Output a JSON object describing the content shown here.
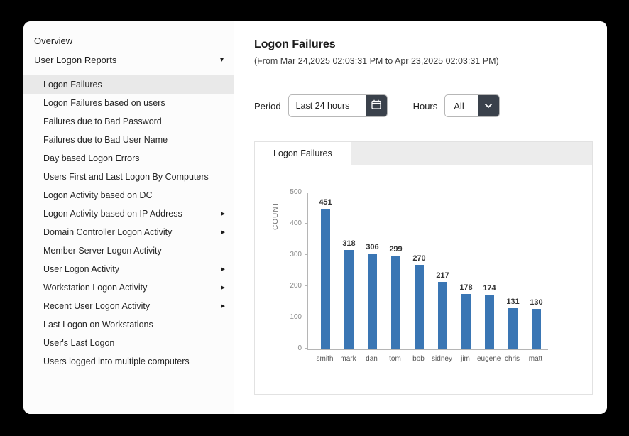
{
  "sidebar": {
    "overview_label": "Overview",
    "group_label": "User Logon Reports",
    "items": [
      {
        "label": "Logon Failures",
        "selected": true,
        "arrow": false
      },
      {
        "label": "Logon Failures based on users",
        "selected": false,
        "arrow": false
      },
      {
        "label": "Failures due to Bad Password",
        "selected": false,
        "arrow": false
      },
      {
        "label": "Failures due to Bad User Name",
        "selected": false,
        "arrow": false
      },
      {
        "label": "Day based Logon Errors",
        "selected": false,
        "arrow": false
      },
      {
        "label": "Users First and Last Logon By Computers",
        "selected": false,
        "arrow": false
      },
      {
        "label": "Logon Activity based on DC",
        "selected": false,
        "arrow": false
      },
      {
        "label": "Logon Activity based on IP Address",
        "selected": false,
        "arrow": true
      },
      {
        "label": "Domain Controller Logon Activity",
        "selected": false,
        "arrow": true
      },
      {
        "label": "Member Server Logon Activity",
        "selected": false,
        "arrow": false
      },
      {
        "label": "User Logon Activity",
        "selected": false,
        "arrow": true
      },
      {
        "label": "Workstation Logon Activity",
        "selected": false,
        "arrow": true
      },
      {
        "label": "Recent User Logon Activity",
        "selected": false,
        "arrow": true
      },
      {
        "label": "Last Logon on Workstations",
        "selected": false,
        "arrow": false
      },
      {
        "label": "User's Last Logon",
        "selected": false,
        "arrow": false
      },
      {
        "label": "Users logged into multiple computers",
        "selected": false,
        "arrow": false
      }
    ]
  },
  "header": {
    "title": "Logon Failures",
    "subtitle": "(From Mar 24,2025 02:03:31 PM to Apr 23,2025 02:03:31 PM)"
  },
  "filters": {
    "period_label": "Period",
    "period_value": "Last 24 hours",
    "hours_label": "Hours",
    "hours_value": "All"
  },
  "tabs": [
    {
      "label": "Logon Failures",
      "active": true
    }
  ],
  "chart_data": {
    "type": "bar",
    "categories": [
      "smith",
      "mark",
      "dan",
      "tom",
      "bob",
      "sidney",
      "jim",
      "eugene",
      "chris",
      "matt"
    ],
    "values": [
      451,
      318,
      306,
      299,
      270,
      217,
      178,
      174,
      131,
      130
    ],
    "title": "",
    "xlabel": "",
    "ylabel": "COUNT",
    "ylim": [
      0,
      500
    ],
    "yticks": [
      0,
      100,
      200,
      300,
      400,
      500
    ],
    "bar_color": "#3a76b4",
    "grid": false,
    "legend": false
  },
  "colors": {
    "accent_blue": "#3a76b4",
    "dark_button": "#3a414b",
    "selected_item_bg": "#e9e9e9"
  }
}
